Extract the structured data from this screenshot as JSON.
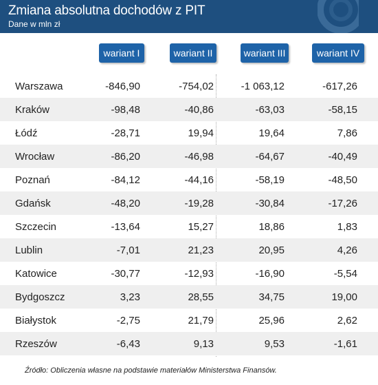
{
  "chart_data": {
    "type": "table",
    "title": "Zmiana absolutna dochodów z PIT",
    "subtitle": "Dane w mln zł",
    "columns": [
      "wariant I",
      "wariant II",
      "wariant III",
      "wariant IV"
    ],
    "rows": [
      {
        "city": "Warszawa",
        "values": [
          "-846,90",
          "-754,02",
          "-1 063,12",
          "-617,26"
        ]
      },
      {
        "city": "Kraków",
        "values": [
          "-98,48",
          "-40,86",
          "-63,03",
          "-58,15"
        ]
      },
      {
        "city": "Łódź",
        "values": [
          "-28,71",
          "19,94",
          "19,64",
          "7,86"
        ]
      },
      {
        "city": "Wrocław",
        "values": [
          "-86,20",
          "-46,98",
          "-64,67",
          "-40,49"
        ]
      },
      {
        "city": "Poznań",
        "values": [
          "-84,12",
          "-44,16",
          "-58,19",
          "-48,50"
        ]
      },
      {
        "city": "Gdańsk",
        "values": [
          "-48,20",
          "-19,28",
          "-30,84",
          "-17,26"
        ]
      },
      {
        "city": "Szczecin",
        "values": [
          "-13,64",
          "15,27",
          "18,86",
          "1,83"
        ]
      },
      {
        "city": "Lublin",
        "values": [
          "-7,01",
          "21,23",
          "20,95",
          "4,26"
        ]
      },
      {
        "city": "Katowice",
        "values": [
          "-30,77",
          "-12,93",
          "-16,90",
          "-5,54"
        ]
      },
      {
        "city": "Bydgoszcz",
        "values": [
          "3,23",
          "28,55",
          "34,75",
          "19,00"
        ]
      },
      {
        "city": "Białystok",
        "values": [
          "-2,75",
          "21,79",
          "25,96",
          "2,62"
        ]
      },
      {
        "city": "Rzeszów",
        "values": [
          "-6,43",
          "9,13",
          "9,53",
          "-1,61"
        ]
      }
    ],
    "source": "Źródło: Obliczenia własne na podstawie materiałów Ministerstwa Finansów."
  },
  "colors": {
    "header_bg": "#1e4f7f",
    "column_header_bg": "#1e63a8",
    "row_shade": "#efefef"
  }
}
